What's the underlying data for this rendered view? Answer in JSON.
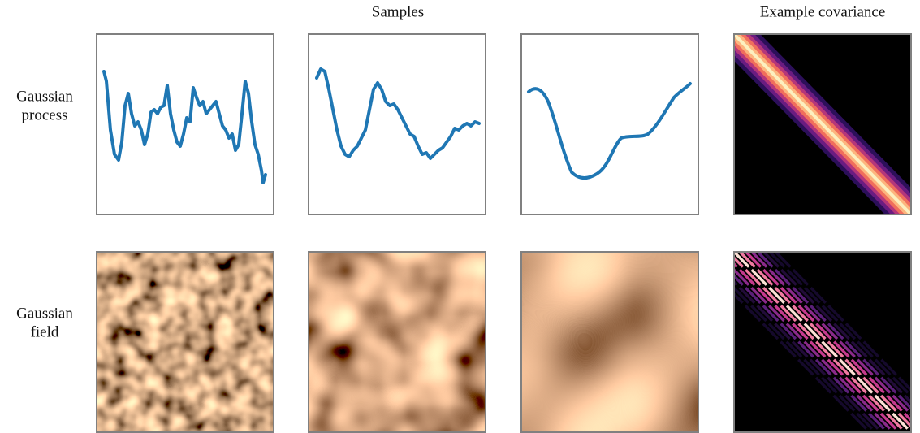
{
  "headers": {
    "samples": "Samples",
    "covariance": "Example covariance"
  },
  "rows": [
    {
      "label": [
        "Gaussian",
        "process"
      ]
    },
    {
      "label": [
        "Gaussian",
        "field"
      ]
    }
  ]
}
